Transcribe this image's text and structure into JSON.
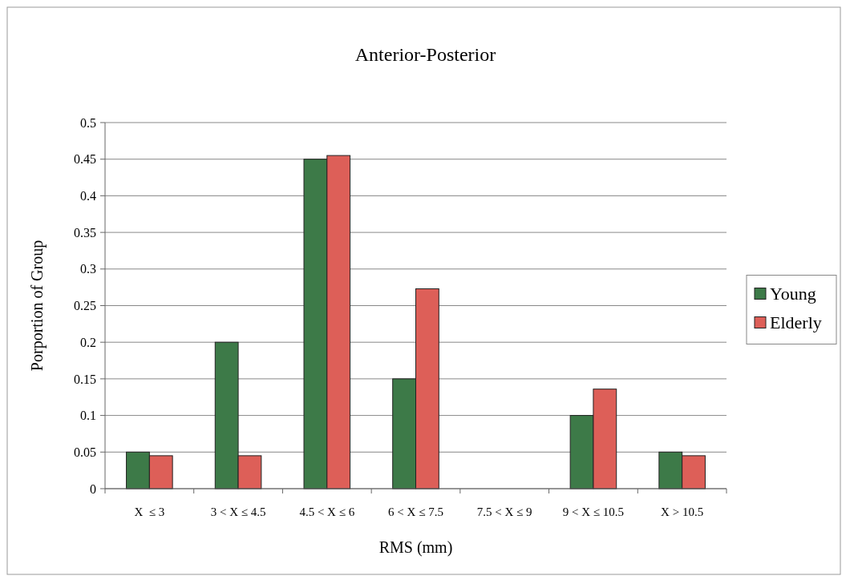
{
  "chart_data": {
    "type": "bar",
    "title": "Anterior-Posterior",
    "xlabel": "RMS (mm)",
    "ylabel": "Porportion of Group",
    "categories": [
      "X  ≤ 3",
      "3 < X ≤ 4.5",
      "4.5 < X ≤ 6",
      "6 < X ≤ 7.5",
      "7.5 < X ≤ 9",
      "9 < X ≤ 10.5",
      "X > 10.5"
    ],
    "series": [
      {
        "name": "Young",
        "color": "#3d7a48",
        "values": [
          0.05,
          0.2,
          0.45,
          0.15,
          0,
          0.1,
          0.05
        ]
      },
      {
        "name": "Elderly",
        "color": "#dd5f58",
        "values": [
          0.045,
          0.045,
          0.455,
          0.273,
          0,
          0.136,
          0.045
        ]
      }
    ],
    "ylim": [
      0,
      0.5
    ],
    "yticks": [
      0,
      0.05,
      0.1,
      0.15,
      0.2,
      0.25,
      0.3,
      0.35,
      0.4,
      0.45,
      0.5
    ],
    "grid": "y",
    "legend": "right"
  }
}
